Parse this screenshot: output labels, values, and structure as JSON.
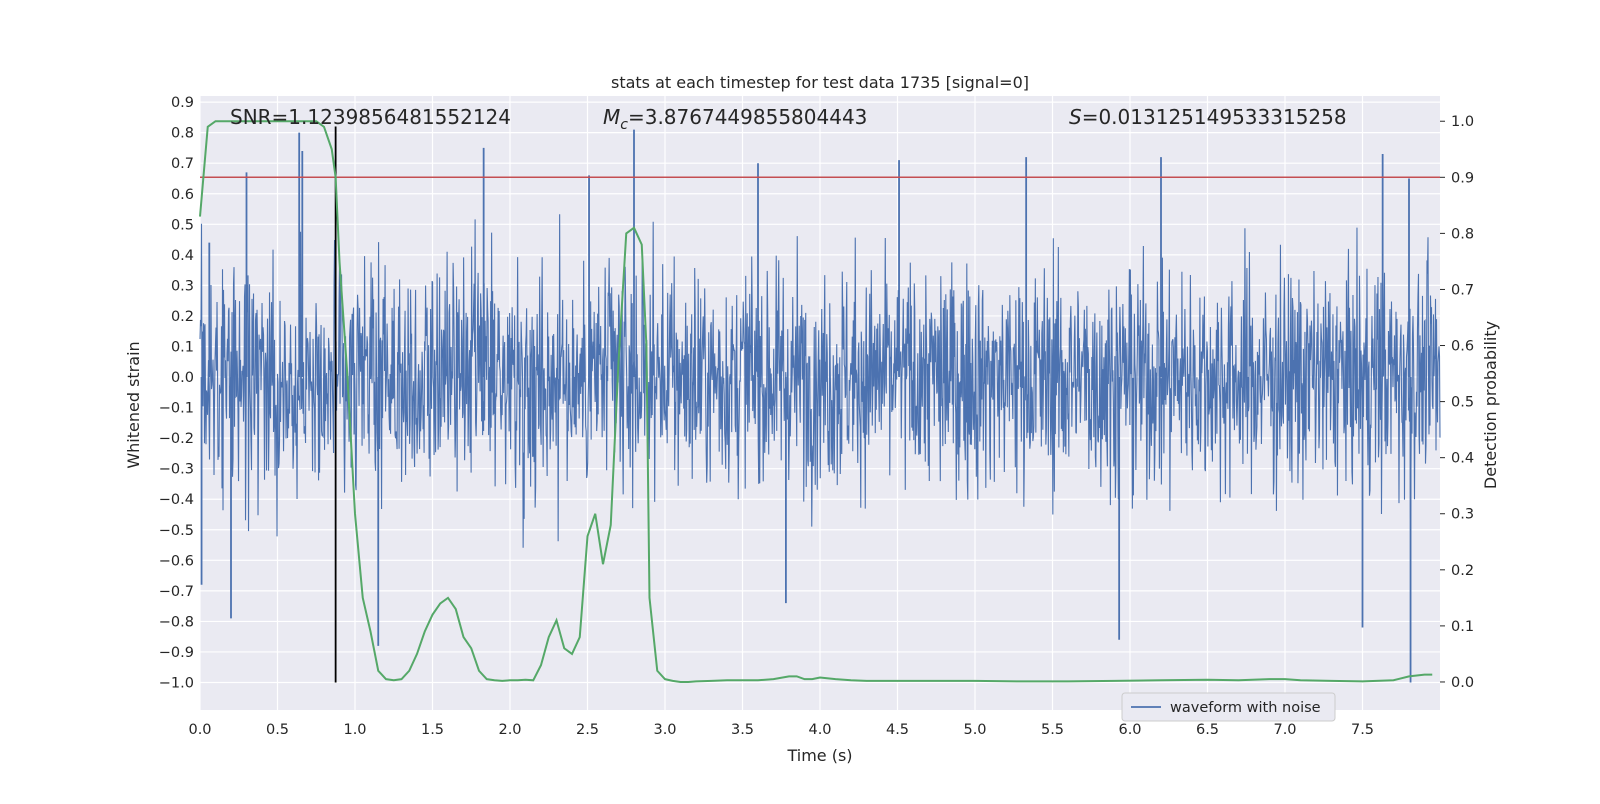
{
  "chart_data": {
    "type": "line",
    "title": "stats at each timestep for test data 1735 [signal=0]",
    "xlabel": "Time (s)",
    "ylabel": "Whitened strain",
    "y2label": "Detection probability",
    "xlim": [
      0.0,
      8.0
    ],
    "ylim": [
      -1.09,
      0.92
    ],
    "y2lim": [
      -0.05,
      1.045
    ],
    "xticks": [
      "0.0",
      "0.5",
      "1.0",
      "1.5",
      "2.0",
      "2.5",
      "3.0",
      "3.5",
      "4.0",
      "4.5",
      "5.0",
      "5.5",
      "6.0",
      "6.5",
      "7.0",
      "7.5"
    ],
    "yticks": [
      "0.9",
      "0.8",
      "0.7",
      "0.6",
      "0.5",
      "0.4",
      "0.3",
      "0.2",
      "0.1",
      "0.0",
      "−0.1",
      "−0.2",
      "−0.3",
      "−0.4",
      "−0.5",
      "−0.6",
      "−0.7",
      "−0.8",
      "−0.9",
      "−1.0"
    ],
    "y2ticks": [
      "1.0",
      "0.9",
      "0.8",
      "0.7",
      "0.6",
      "0.5",
      "0.4",
      "0.3",
      "0.2",
      "0.1",
      "0.0"
    ],
    "grid": true,
    "legend": {
      "position": "lower-right",
      "entries": [
        "waveform with noise"
      ]
    },
    "annotations": {
      "snr": "SNR=1.1239856481552124",
      "mc_symbol": "M",
      "mc_sub": "c",
      "mc_value": "=3.8767449855804443",
      "s_symbol": "S",
      "s_value": "=0.013125149533315258"
    },
    "threshold": {
      "value": 0.9,
      "axis": "y2",
      "color": "#c44e52"
    },
    "marker_line": {
      "x": 0.875,
      "y_from": -1.0,
      "y_to": 0.82,
      "color": "#000000"
    },
    "series": [
      {
        "name": "waveform with noise",
        "color": "#4c72b0",
        "axis": "y",
        "kind": "noise",
        "x_range": [
          0.0,
          8.0
        ],
        "typical_amplitude": 0.29,
        "peaks": [
          {
            "x": 0.06,
            "y": 0.44
          },
          {
            "x": 0.3,
            "y": 0.67
          },
          {
            "x": 0.64,
            "y": 0.8
          },
          {
            "x": 0.66,
            "y": 0.74
          },
          {
            "x": 1.83,
            "y": 0.75
          },
          {
            "x": 2.51,
            "y": 0.66
          },
          {
            "x": 2.8,
            "y": 0.81
          },
          {
            "x": 3.6,
            "y": 0.7
          },
          {
            "x": 4.51,
            "y": 0.71
          },
          {
            "x": 5.33,
            "y": 0.72
          },
          {
            "x": 6.2,
            "y": 0.72
          },
          {
            "x": 7.63,
            "y": 0.73
          },
          {
            "x": 7.8,
            "y": 0.65
          },
          {
            "x": 0.2,
            "y": -0.79
          },
          {
            "x": 1.15,
            "y": -0.88
          },
          {
            "x": 3.78,
            "y": -0.74
          },
          {
            "x": 5.93,
            "y": -0.86
          },
          {
            "x": 7.5,
            "y": -0.82
          },
          {
            "x": 7.81,
            "y": -1.0
          },
          {
            "x": 0.01,
            "y": -0.68
          }
        ]
      },
      {
        "name": "",
        "color": "#55a868",
        "axis": "y2",
        "x": [
          0.0,
          0.05,
          0.1,
          0.15,
          0.2,
          0.3,
          0.4,
          0.5,
          0.6,
          0.7,
          0.75,
          0.8,
          0.85,
          0.875,
          0.9,
          0.95,
          1.0,
          1.05,
          1.1,
          1.15,
          1.2,
          1.25,
          1.3,
          1.35,
          1.4,
          1.45,
          1.5,
          1.55,
          1.6,
          1.65,
          1.7,
          1.75,
          1.8,
          1.85,
          1.9,
          1.95,
          2.0,
          2.05,
          2.1,
          2.15,
          2.2,
          2.25,
          2.3,
          2.35,
          2.4,
          2.45,
          2.5,
          2.55,
          2.6,
          2.65,
          2.7,
          2.75,
          2.8,
          2.85,
          2.88,
          2.9,
          2.95,
          3.0,
          3.05,
          3.1,
          3.15,
          3.2,
          3.3,
          3.4,
          3.5,
          3.6,
          3.7,
          3.8,
          3.85,
          3.9,
          3.95,
          4.0,
          4.1,
          4.2,
          4.3,
          4.4,
          4.5,
          4.7,
          5.0,
          5.3,
          5.6,
          5.9,
          6.2,
          6.5,
          6.7,
          6.9,
          7.0,
          7.1,
          7.3,
          7.5,
          7.7,
          7.8,
          7.9,
          7.95
        ],
        "values": [
          0.83,
          0.99,
          1.0,
          1.0,
          1.0,
          1.0,
          1.0,
          1.0,
          1.0,
          1.0,
          1.0,
          0.99,
          0.95,
          0.9,
          0.75,
          0.55,
          0.3,
          0.15,
          0.09,
          0.02,
          0.005,
          0.003,
          0.005,
          0.02,
          0.05,
          0.09,
          0.12,
          0.14,
          0.15,
          0.13,
          0.08,
          0.06,
          0.02,
          0.005,
          0.003,
          0.002,
          0.003,
          0.003,
          0.004,
          0.003,
          0.03,
          0.08,
          0.11,
          0.06,
          0.05,
          0.08,
          0.26,
          0.3,
          0.21,
          0.28,
          0.57,
          0.8,
          0.81,
          0.78,
          0.6,
          0.15,
          0.02,
          0.005,
          0.002,
          0.0,
          0.0,
          0.001,
          0.002,
          0.003,
          0.003,
          0.003,
          0.005,
          0.01,
          0.01,
          0.005,
          0.005,
          0.008,
          0.005,
          0.003,
          0.002,
          0.002,
          0.002,
          0.002,
          0.002,
          0.001,
          0.001,
          0.002,
          0.003,
          0.004,
          0.003,
          0.005,
          0.005,
          0.003,
          0.002,
          0.001,
          0.003,
          0.01,
          0.013,
          0.013
        ]
      }
    ]
  }
}
